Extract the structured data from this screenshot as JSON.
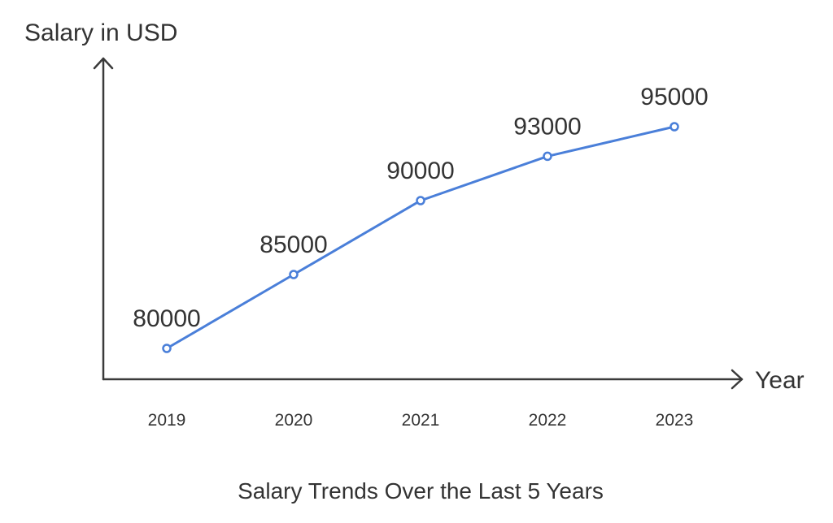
{
  "chart_data": {
    "type": "line",
    "title": "Salary Trends Over the Last 5 Years",
    "xlabel": "Year",
    "ylabel": "Salary in USD",
    "categories": [
      "2019",
      "2020",
      "2021",
      "2022",
      "2023"
    ],
    "series": [
      {
        "values": [
          80000,
          85000,
          90000,
          93000,
          95000
        ],
        "color": "#4a7fd9"
      }
    ],
    "data_labels": [
      "80000",
      "85000",
      "90000",
      "93000",
      "95000"
    ],
    "axis_color": "#3a3a3a",
    "text_color": "#333333",
    "grid": false,
    "legend": "none"
  }
}
